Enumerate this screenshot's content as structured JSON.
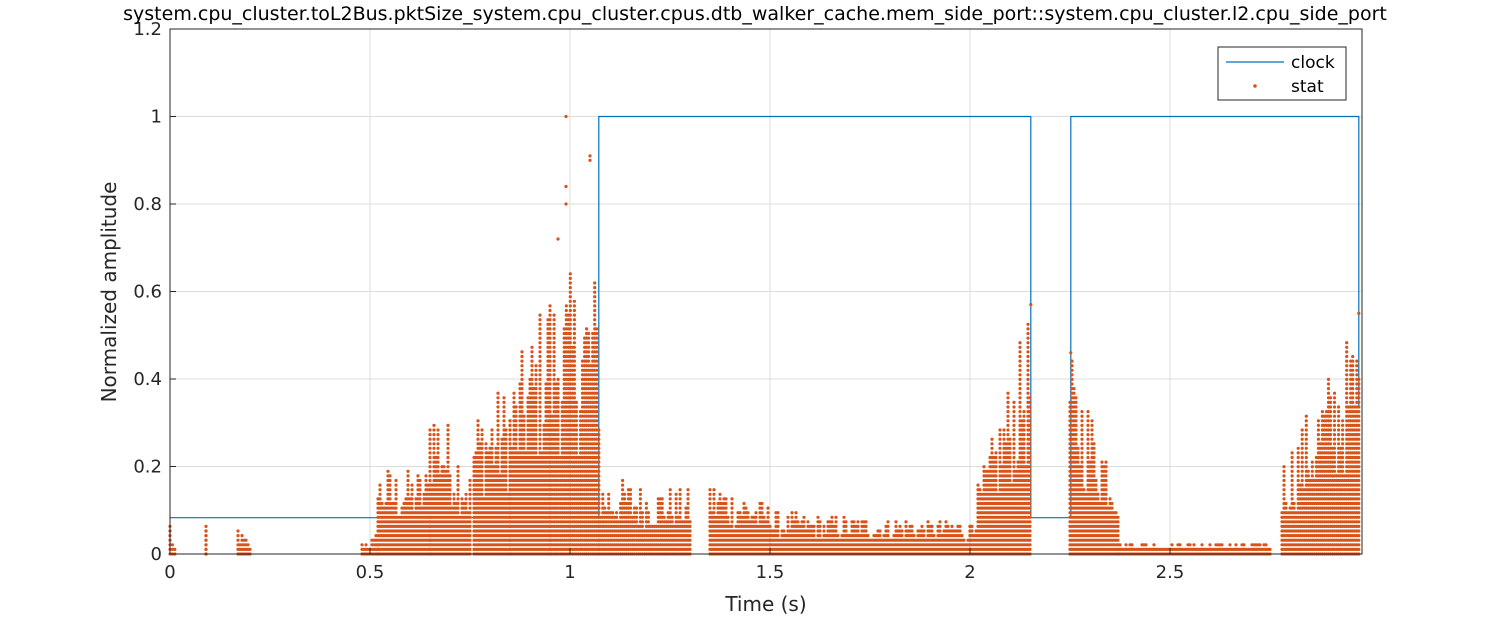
{
  "chart_data": {
    "type": "line",
    "title": "system.cpu_cluster.toL2Bus.pktSize_system.cpu_cluster.cpus.dtb_walker_cache.mem_side_port::system.cpu_cluster.l2.cpu_side_port",
    "xlabel": "Time (s)",
    "ylabel": "Normalized amplitude",
    "xlim": [
      0,
      2.98
    ],
    "ylim": [
      0,
      1.2
    ],
    "grid": true,
    "legend_position": "top-right",
    "x_ticks": [
      {
        "value": 0,
        "label": "0"
      },
      {
        "value": 0.5,
        "label": "0.5"
      },
      {
        "value": 1,
        "label": "1"
      },
      {
        "value": 1.5,
        "label": "1.5"
      },
      {
        "value": 2,
        "label": "2"
      },
      {
        "value": 2.5,
        "label": "2.5"
      }
    ],
    "y_ticks": [
      {
        "value": 0,
        "label": "0"
      },
      {
        "value": 0.2,
        "label": "0.2"
      },
      {
        "value": 0.4,
        "label": "0.4"
      },
      {
        "value": 0.6,
        "label": "0.6"
      },
      {
        "value": 0.8,
        "label": "0.8"
      },
      {
        "value": 1,
        "label": "1"
      },
      {
        "value": 1.2,
        "label": "1.2"
      }
    ],
    "series": [
      {
        "name": "clock",
        "style": "step-line",
        "color": "#0072BD",
        "x": [
          0,
          1.072,
          1.072,
          2.152,
          2.152,
          2.252,
          2.252,
          2.972,
          2.972
        ],
        "y": [
          0.083,
          0.083,
          1,
          1,
          0.083,
          0.083,
          1,
          1,
          0.333
        ]
      },
      {
        "name": "stat",
        "style": "markers",
        "color": "#D95319",
        "quantum": 0.0105,
        "clusters": [
          {
            "x": [
              0.0,
              0.012
            ],
            "max": [
              0.09,
              0.02
            ]
          },
          {
            "x": [
              0.09,
              0.09
            ],
            "max": [
              0.07,
              0.07
            ]
          },
          {
            "x": [
              0.17,
              0.2
            ],
            "max": [
              0.07,
              0.03
            ]
          },
          {
            "x": [
              0.48,
              0.52
            ],
            "max": [
              0.03,
              0.05
            ]
          },
          {
            "x": [
              0.52,
              0.65
            ],
            "max": [
              0.2,
              0.2
            ]
          },
          {
            "x": [
              0.65,
              0.75
            ],
            "max": [
              0.4,
              0.2
            ]
          },
          {
            "x": [
              0.76,
              0.85
            ],
            "max": [
              0.34,
              0.4
            ]
          },
          {
            "x": [
              0.85,
              0.95
            ],
            "max": [
              0.4,
              0.63
            ]
          },
          {
            "x": [
              0.95,
              1.072
            ],
            "max": [
              0.63,
              0.66
            ]
          },
          {
            "x": [
              1.072,
              1.3
            ],
            "max": [
              0.18,
              0.15
            ]
          },
          {
            "x": [
              1.35,
              1.5
            ],
            "max": [
              0.18,
              0.12
            ]
          },
          {
            "x": [
              1.5,
              2.0
            ],
            "max": [
              0.1,
              0.08
            ]
          },
          {
            "x": [
              2.0,
              2.15
            ],
            "max": [
              0.1,
              0.57
            ]
          },
          {
            "x": [
              2.25,
              2.37
            ],
            "max": [
              0.46,
              0.21
            ]
          },
          {
            "x": [
              2.37,
              2.75
            ],
            "max": [
              0.03,
              0.03
            ]
          },
          {
            "x": [
              2.78,
              2.972
            ],
            "max": [
              0.22,
              0.55
            ]
          }
        ],
        "outliers": [
          {
            "x": 0.99,
            "y": 1.0
          },
          {
            "x": 1.05,
            "y": 0.91
          },
          {
            "x": 1.05,
            "y": 0.9
          },
          {
            "x": 0.99,
            "y": 0.84
          },
          {
            "x": 0.99,
            "y": 0.8
          },
          {
            "x": 0.97,
            "y": 0.72
          },
          {
            "x": 2.152,
            "y": 0.57
          },
          {
            "x": 2.252,
            "y": 0.46
          },
          {
            "x": 2.972,
            "y": 0.55
          }
        ]
      }
    ]
  }
}
